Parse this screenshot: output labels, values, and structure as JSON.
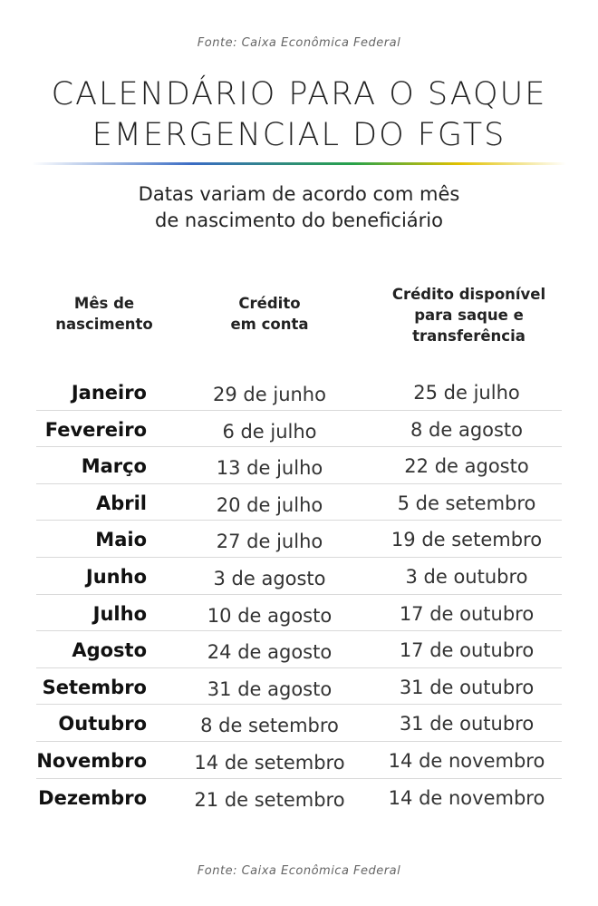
{
  "source_label": "Fonte: Caixa Econômica Federal",
  "title": {
    "line1": "CALENDÁRIO PARA O SAQUE",
    "line2": "EMERGENCIAL DO FGTS"
  },
  "subtitle": {
    "line1": "Datas variam de acordo com mês",
    "line2": "de nascimento do beneficiário"
  },
  "headers": {
    "month": [
      "Mês de",
      "nascimento"
    ],
    "credit": [
      "Crédito",
      "em conta"
    ],
    "available": [
      "Crédito disponível",
      "para saque e",
      "transferência"
    ]
  },
  "rows": [
    {
      "month": "Janeiro",
      "credit": "29 de junho",
      "available": "25 de julho"
    },
    {
      "month": "Fevereiro",
      "credit": "6 de julho",
      "available": "8 de agosto"
    },
    {
      "month": "Março",
      "credit": "13 de julho",
      "available": "22 de agosto"
    },
    {
      "month": "Abril",
      "credit": "20 de julho",
      "available": "5 de setembro"
    },
    {
      "month": "Maio",
      "credit": "27 de julho",
      "available": "19 de setembro"
    },
    {
      "month": "Junho",
      "credit": "3 de agosto",
      "available": "3 de outubro"
    },
    {
      "month": "Julho",
      "credit": "10 de agosto",
      "available": "17 de outubro"
    },
    {
      "month": "Agosto",
      "credit": "24 de agosto",
      "available": "17 de outubro"
    },
    {
      "month": "Setembro",
      "credit": "31 de agosto",
      "available": "31 de outubro"
    },
    {
      "month": "Outubro",
      "credit": "8 de setembro",
      "available": "31 de outubro"
    },
    {
      "month": "Novembro",
      "credit": "14 de setembro",
      "available": "14 de novembro"
    },
    {
      "month": "Dezembro",
      "credit": "21 de setembro",
      "available": "14 de novembro"
    }
  ]
}
